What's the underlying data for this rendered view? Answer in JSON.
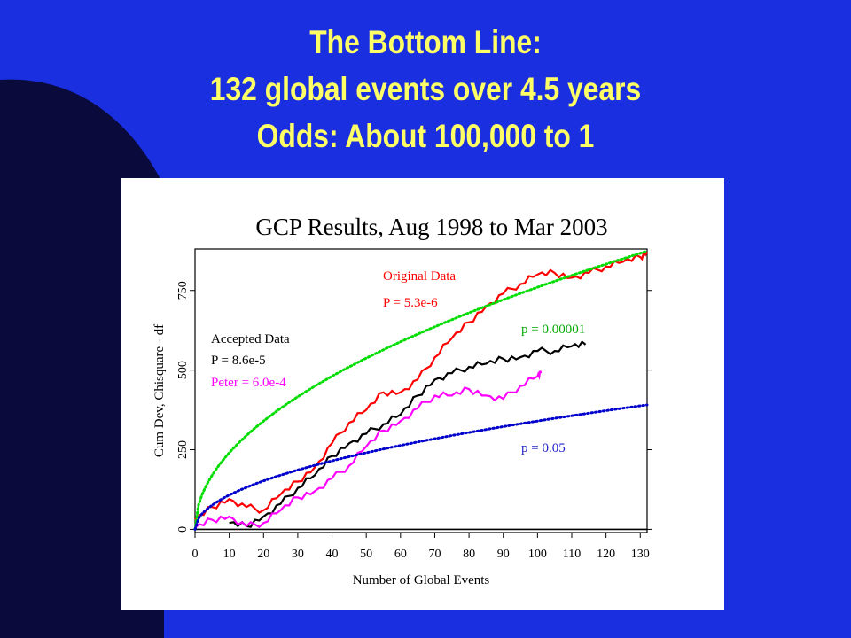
{
  "slide": {
    "title_line1": "The Bottom Line:",
    "title_line2": "132 global events over 4.5 years",
    "title_line3": "Odds: About 100,000 to 1",
    "title_color": "#ffff66",
    "background_color": "#1a2fe0"
  },
  "chart_data": {
    "type": "line",
    "title": "GCP Results, Aug 1998 to Mar 2003",
    "xlabel": "Number of Global Events",
    "ylabel": "Cum Dev, Chisquare - df",
    "xlim": [
      0,
      132
    ],
    "ylim": [
      -10,
      880
    ],
    "x_ticks": [
      0,
      10,
      20,
      30,
      40,
      50,
      60,
      70,
      80,
      90,
      100,
      110,
      120,
      130
    ],
    "y_ticks": [
      0,
      250,
      500,
      750
    ],
    "grid": false,
    "series": [
      {
        "name": "Original Data",
        "color": "#ff0000",
        "style": "solid",
        "x": [
          0,
          5,
          10,
          15,
          20,
          25,
          30,
          35,
          40,
          45,
          50,
          55,
          60,
          65,
          70,
          75,
          80,
          85,
          90,
          95,
          100,
          105,
          110,
          115,
          120,
          125,
          130,
          132
        ],
        "y": [
          30,
          70,
          95,
          70,
          60,
          110,
          150,
          195,
          270,
          335,
          375,
          430,
          430,
          470,
          540,
          600,
          650,
          700,
          740,
          770,
          800,
          805,
          790,
          805,
          825,
          840,
          855,
          870
        ]
      },
      {
        "name": "Accepted Data",
        "color": "#000000",
        "style": "solid",
        "x": [
          10,
          15,
          20,
          25,
          30,
          35,
          40,
          45,
          50,
          55,
          60,
          65,
          70,
          75,
          80,
          85,
          90,
          95,
          100,
          105,
          110,
          114
        ],
        "y": [
          20,
          10,
          40,
          80,
          130,
          170,
          230,
          270,
          300,
          330,
          360,
          420,
          470,
          490,
          510,
          520,
          535,
          540,
          560,
          560,
          575,
          580
        ]
      },
      {
        "name": "Peter = 6.0e-4",
        "color": "#ff00ff",
        "style": "solid",
        "x": [
          0,
          5,
          10,
          15,
          20,
          25,
          30,
          35,
          40,
          45,
          50,
          55,
          60,
          65,
          70,
          75,
          80,
          85,
          90,
          95,
          100,
          101
        ],
        "y": [
          5,
          30,
          40,
          10,
          20,
          60,
          100,
          120,
          160,
          200,
          260,
          310,
          340,
          380,
          420,
          420,
          440,
          420,
          410,
          450,
          480,
          490
        ]
      },
      {
        "name": "p = 0.00001",
        "color": "#00dd00",
        "style": "dotted",
        "curve": "sqrt",
        "k": 76,
        "x_range": [
          0,
          132
        ]
      },
      {
        "name": "p = 0.05",
        "color": "#0000cc",
        "style": "dotted",
        "curve": "sqrt",
        "k": 34,
        "x_range": [
          0,
          132
        ]
      }
    ],
    "zero_line_color": "#000000",
    "annotations": {
      "original_label": "Original Data",
      "original_p": "P = 5.3e-6",
      "accepted_label": "Accepted Data",
      "accepted_p": "P = 8.6e-5",
      "peter_label": "Peter = 6.0e-4",
      "p_green_label": "p = 0.00001",
      "p_blue_label": "p = 0.05"
    }
  }
}
